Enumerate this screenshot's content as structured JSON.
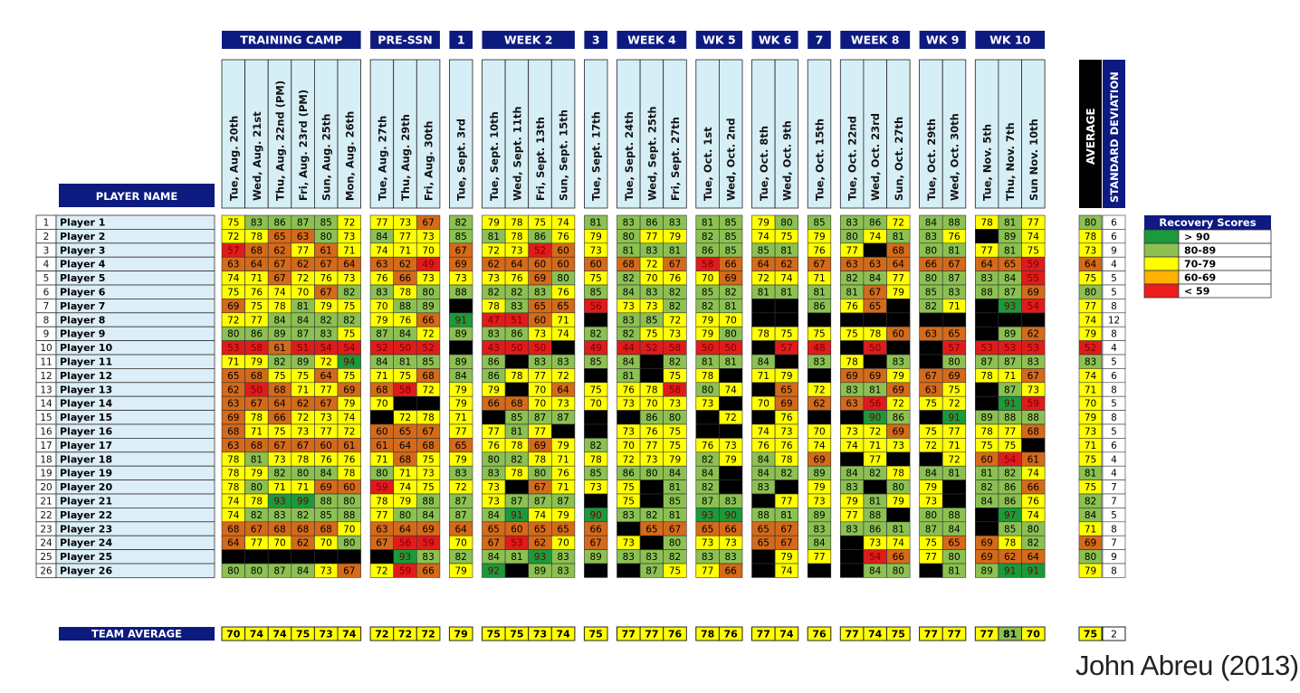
{
  "chart_data": {
    "type": "heatmap",
    "week_groups": [
      {
        "label": "TRAINING CAMP",
        "span": 6
      },
      {
        "label": "PRE-SSN",
        "span": 3
      },
      {
        "label": "1",
        "span": 1
      },
      {
        "label": "WEEK 2",
        "span": 4
      },
      {
        "label": "3",
        "span": 1
      },
      {
        "label": "WEEK 4",
        "span": 3
      },
      {
        "label": "WK 5",
        "span": 2
      },
      {
        "label": "WK 6",
        "span": 2
      },
      {
        "label": "7",
        "span": 1
      },
      {
        "label": "WEEK 8",
        "span": 3
      },
      {
        "label": "WK 9",
        "span": 2
      },
      {
        "label": "WK 10",
        "span": 3
      }
    ],
    "dates": [
      "Tue, Aug. 20th",
      "Wed, Aug. 21st",
      "Thu, Aug. 22nd (PM)",
      "Fri, Aug. 23rd (PM)",
      "Sun, Aug. 25th",
      "Mon, Aug. 26th",
      "Tue, Aug. 27th",
      "Thu, Aug. 29th",
      "Fri, Aug. 30th",
      "Tue, Sept. 3rd",
      "Tue, Sept. 10th",
      "Wed, Sept. 11th",
      "Fri, Sept. 13th",
      "Sun, Sept. 15th",
      "Tue, Sept. 17th",
      "Tue, Sept. 24th",
      "Wed, Sept. 25th",
      "Fri, Sept. 27th",
      "Tue, Oct. 1st",
      "Wed, Oct. 2nd",
      "Tue, Oct. 8th",
      "Wed, Oct. 9th",
      "Tue, Oct. 15th",
      "Tue, Oct. 22nd",
      "Wed, Oct. 23rd",
      "Sun, Oct. 27th",
      "Tue, Oct. 29th",
      "Wed, Oct. 30th",
      "Tue, Nov. 5th",
      "Thu, Nov. 7th",
      "Sun Nov. 10th"
    ],
    "player_header": "PLAYER NAME",
    "stat_headers": {
      "average": "AVERAGE",
      "std": "STANDARD DEVIATION"
    },
    "players": [
      {
        "num": "1",
        "name": "Player 1",
        "scores": [
          75,
          83,
          86,
          87,
          85,
          72,
          77,
          73,
          67,
          82,
          79,
          78,
          75,
          74,
          81,
          83,
          86,
          83,
          81,
          85,
          79,
          80,
          85,
          83,
          86,
          72,
          84,
          88,
          78,
          81,
          77
        ],
        "avg": 80,
        "sd": 6
      },
      {
        "num": "2",
        "name": "Player 2",
        "scores": [
          72,
          78,
          65,
          63,
          80,
          73,
          84,
          77,
          73,
          85,
          81,
          78,
          86,
          76,
          79,
          80,
          77,
          79,
          82,
          85,
          74,
          75,
          79,
          80,
          74,
          81,
          83,
          76,
          null,
          89,
          74
        ],
        "avg": 78,
        "sd": 6
      },
      {
        "num": "3",
        "name": "Player 3",
        "scores": [
          57,
          68,
          62,
          77,
          61,
          71,
          74,
          71,
          70,
          67,
          72,
          73,
          52,
          60,
          73,
          81,
          83,
          81,
          86,
          85,
          85,
          81,
          76,
          77,
          null,
          68,
          80,
          81,
          77,
          81,
          75
        ],
        "avg": 73,
        "sd": 9
      },
      {
        "num": "4",
        "name": "Player 4",
        "scores": [
          63,
          64,
          67,
          62,
          67,
          64,
          63,
          62,
          49,
          69,
          62,
          64,
          60,
          60,
          60,
          68,
          72,
          67,
          58,
          66,
          64,
          62,
          67,
          63,
          63,
          64,
          66,
          67,
          64,
          65,
          59
        ],
        "avg": 64,
        "sd": 4
      },
      {
        "num": "5",
        "name": "Player 5",
        "scores": [
          74,
          71,
          67,
          72,
          76,
          73,
          76,
          66,
          73,
          73,
          73,
          76,
          69,
          80,
          75,
          82,
          70,
          76,
          70,
          69,
          72,
          74,
          71,
          82,
          84,
          77,
          80,
          87,
          83,
          84,
          55
        ],
        "avg": 75,
        "sd": 5
      },
      {
        "num": "6",
        "name": "Player 6",
        "scores": [
          75,
          76,
          74,
          70,
          67,
          82,
          83,
          78,
          80,
          88,
          82,
          82,
          83,
          76,
          85,
          84,
          83,
          82,
          85,
          82,
          81,
          81,
          81,
          81,
          67,
          79,
          85,
          83,
          88,
          87,
          69
        ],
        "avg": 80,
        "sd": 5
      },
      {
        "num": "7",
        "name": "Player 7",
        "scores": [
          69,
          75,
          78,
          81,
          79,
          75,
          70,
          88,
          89,
          null,
          78,
          83,
          65,
          65,
          56,
          73,
          73,
          82,
          82,
          81,
          null,
          null,
          86,
          76,
          65,
          null,
          82,
          71,
          null,
          93,
          54
        ],
        "avg": 77,
        "sd": 8
      },
      {
        "num": "8",
        "name": "Player 8",
        "scores": [
          72,
          77,
          84,
          84,
          82,
          82,
          79,
          76,
          66,
          91,
          47,
          51,
          60,
          71,
          null,
          83,
          85,
          72,
          79,
          70,
          null,
          null,
          null,
          null,
          null,
          null,
          null,
          null,
          null,
          null,
          null
        ],
        "avg": 74,
        "sd": 12
      },
      {
        "num": "9",
        "name": "Player 9",
        "scores": [
          80,
          86,
          89,
          87,
          83,
          75,
          87,
          84,
          72,
          89,
          83,
          86,
          73,
          74,
          82,
          82,
          75,
          73,
          79,
          80,
          78,
          75,
          75,
          75,
          78,
          60,
          63,
          65,
          null,
          89,
          62
        ],
        "avg": 79,
        "sd": 8
      },
      {
        "num": "10",
        "name": "Player 10",
        "scores": [
          53,
          58,
          61,
          51,
          54,
          54,
          52,
          50,
          52,
          null,
          43,
          50,
          50,
          null,
          49,
          44,
          52,
          58,
          50,
          50,
          null,
          57,
          48,
          null,
          50,
          null,
          null,
          57,
          53,
          53,
          53
        ],
        "avg": 52,
        "sd": 4
      },
      {
        "num": "11",
        "name": "Player 11",
        "scores": [
          71,
          79,
          82,
          89,
          72,
          94,
          84,
          81,
          85,
          89,
          86,
          null,
          83,
          83,
          85,
          84,
          null,
          82,
          81,
          81,
          84,
          null,
          83,
          78,
          null,
          83,
          null,
          80,
          87,
          87,
          83
        ],
        "avg": 83,
        "sd": 5
      },
      {
        "num": "12",
        "name": "Player 12",
        "scores": [
          65,
          68,
          75,
          75,
          64,
          75,
          71,
          75,
          68,
          84,
          86,
          78,
          77,
          72,
          null,
          81,
          null,
          75,
          78,
          null,
          71,
          79,
          null,
          69,
          69,
          79,
          67,
          69,
          78,
          71,
          67
        ],
        "avg": 74,
        "sd": 6
      },
      {
        "num": "13",
        "name": "Player 13",
        "scores": [
          62,
          50,
          68,
          71,
          77,
          69,
          68,
          58,
          72,
          79,
          79,
          null,
          70,
          64,
          75,
          76,
          78,
          58,
          80,
          74,
          null,
          65,
          72,
          83,
          81,
          69,
          63,
          75,
          null,
          87,
          73
        ],
        "avg": 71,
        "sd": 8
      },
      {
        "num": "14",
        "name": "Player 14",
        "scores": [
          63,
          67,
          64,
          62,
          67,
          79,
          70,
          null,
          null,
          79,
          66,
          68,
          70,
          73,
          70,
          73,
          70,
          73,
          73,
          null,
          70,
          69,
          62,
          63,
          56,
          72,
          75,
          72,
          null,
          91,
          59
        ],
        "avg": 70,
        "sd": 5
      },
      {
        "num": "15",
        "name": "Player 15",
        "scores": [
          69,
          78,
          66,
          72,
          73,
          74,
          null,
          72,
          78,
          71,
          null,
          85,
          87,
          87,
          null,
          null,
          86,
          80,
          null,
          72,
          null,
          76,
          null,
          null,
          90,
          86,
          null,
          91,
          89,
          88,
          88
        ],
        "avg": 79,
        "sd": 8
      },
      {
        "num": "16",
        "name": "Player 16",
        "scores": [
          68,
          71,
          75,
          73,
          77,
          72,
          60,
          65,
          67,
          77,
          77,
          81,
          77,
          null,
          null,
          73,
          76,
          75,
          null,
          null,
          74,
          73,
          70,
          73,
          72,
          69,
          75,
          77,
          78,
          77,
          68
        ],
        "avg": 73,
        "sd": 5
      },
      {
        "num": "17",
        "name": "Player 17",
        "scores": [
          63,
          68,
          67,
          67,
          60,
          61,
          61,
          64,
          68,
          65,
          76,
          78,
          69,
          79,
          82,
          70,
          77,
          75,
          76,
          73,
          76,
          76,
          74,
          74,
          71,
          73,
          72,
          71,
          75,
          75,
          null
        ],
        "avg": 71,
        "sd": 6
      },
      {
        "num": "18",
        "name": "Player 18",
        "scores": [
          78,
          81,
          73,
          78,
          76,
          76,
          71,
          68,
          75,
          79,
          80,
          82,
          78,
          71,
          78,
          72,
          73,
          79,
          82,
          79,
          84,
          78,
          69,
          null,
          77,
          null,
          null,
          72,
          60,
          54,
          61
        ],
        "avg": 75,
        "sd": 4
      },
      {
        "num": "19",
        "name": "Player 19",
        "scores": [
          78,
          79,
          82,
          80,
          84,
          78,
          80,
          71,
          73,
          83,
          83,
          78,
          80,
          76,
          85,
          86,
          80,
          84,
          84,
          null,
          84,
          82,
          89,
          84,
          82,
          78,
          84,
          81,
          81,
          82,
          74
        ],
        "avg": 81,
        "sd": 4
      },
      {
        "num": "20",
        "name": "Player 20",
        "scores": [
          78,
          80,
          71,
          71,
          69,
          60,
          59,
          74,
          75,
          72,
          73,
          null,
          67,
          71,
          73,
          75,
          null,
          81,
          82,
          null,
          83,
          null,
          79,
          83,
          null,
          80,
          79,
          null,
          82,
          86,
          66
        ],
        "avg": 75,
        "sd": 7
      },
      {
        "num": "21",
        "name": "Player 21",
        "scores": [
          74,
          78,
          93,
          99,
          88,
          80,
          78,
          79,
          88,
          87,
          73,
          87,
          87,
          87,
          null,
          75,
          null,
          85,
          87,
          83,
          null,
          77,
          73,
          79,
          81,
          79,
          73,
          null,
          84,
          86,
          76
        ],
        "avg": 82,
        "sd": 7
      },
      {
        "num": "22",
        "name": "Player 22",
        "scores": [
          74,
          82,
          83,
          82,
          85,
          88,
          77,
          80,
          84,
          87,
          84,
          91,
          74,
          79,
          90,
          83,
          82,
          81,
          93,
          90,
          88,
          81,
          89,
          77,
          88,
          null,
          80,
          88,
          null,
          97,
          74
        ],
        "avg": 84,
        "sd": 5
      },
      {
        "num": "23",
        "name": "Player 23",
        "scores": [
          68,
          67,
          68,
          68,
          68,
          70,
          63,
          64,
          69,
          64,
          65,
          60,
          65,
          65,
          66,
          null,
          65,
          67,
          65,
          66,
          65,
          67,
          83,
          83,
          86,
          81,
          87,
          84,
          null,
          85,
          80
        ],
        "avg": 71,
        "sd": 8
      },
      {
        "num": "24",
        "name": "Player 24",
        "scores": [
          64,
          77,
          70,
          62,
          70,
          80,
          67,
          56,
          59,
          70,
          67,
          53,
          62,
          70,
          67,
          73,
          null,
          80,
          73,
          73,
          65,
          67,
          84,
          null,
          73,
          74,
          75,
          65,
          69,
          78,
          82
        ],
        "avg": 69,
        "sd": 7
      },
      {
        "num": "25",
        "name": "Player 25",
        "scores": [
          null,
          null,
          null,
          null,
          null,
          null,
          null,
          93,
          83,
          82,
          84,
          81,
          93,
          83,
          89,
          83,
          83,
          82,
          83,
          83,
          null,
          79,
          77,
          null,
          54,
          66,
          77,
          80,
          69,
          62,
          64
        ],
        "avg": 80,
        "sd": 9
      },
      {
        "num": "26",
        "name": "Player 26",
        "scores": [
          80,
          80,
          87,
          84,
          73,
          67,
          72,
          59,
          66,
          79,
          92,
          null,
          89,
          83,
          null,
          null,
          87,
          75,
          77,
          66,
          null,
          74,
          null,
          null,
          84,
          80,
          null,
          81,
          89,
          91,
          91
        ],
        "avg": 79,
        "sd": 8
      }
    ],
    "team_average_label": "TEAM AVERAGE",
    "team_average": [
      70,
      74,
      74,
      75,
      73,
      74,
      72,
      72,
      72,
      79,
      75,
      75,
      73,
      74,
      75,
      77,
      77,
      76,
      78,
      76,
      77,
      74,
      76,
      77,
      74,
      75,
      77,
      77,
      77,
      81,
      70
    ],
    "team_avg": 75,
    "team_sd": 2,
    "legend": {
      "title": "Recovery Scores",
      "items": [
        {
          "label": "> 90",
          "color": "#1a9a3c"
        },
        {
          "label": "80-89",
          "color": "#8cc152"
        },
        {
          "label": "70-79",
          "color": "#ffff00"
        },
        {
          "label": "60-69",
          "color": "#ffb000"
        },
        {
          "label": "< 59",
          "color": "#ee1c1c"
        }
      ]
    },
    "colors": {
      "header_bg": "#0d1a80",
      "date_bg": "#d6eef6",
      "name_bg": "#dceef7",
      "missing": "#000000",
      "c90": "#1a9a3c",
      "c80": "#8cc152",
      "c70": "#ffff00",
      "c60": "#d46a1a",
      "c59": "#e01b1b",
      "team_high": "#8cc152"
    }
  },
  "author": "John Abreu (2013)"
}
